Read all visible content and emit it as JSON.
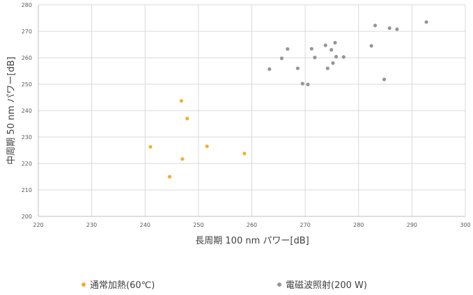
{
  "chart_data": {
    "type": "scatter",
    "xlabel": "長周期 100 nm パワー[dB]",
    "ylabel": "中周期 50 nm パワー[dB]",
    "xlim": [
      220,
      300
    ],
    "ylim": [
      200,
      280
    ],
    "xticks": [
      "220",
      "230",
      "240",
      "250",
      "260",
      "270",
      "280",
      "290",
      "300"
    ],
    "yticks": [
      "200",
      "210",
      "220",
      "230",
      "240",
      "250",
      "260",
      "270",
      "280"
    ],
    "grid": true,
    "legend_position": "bottom",
    "series": [
      {
        "name": "通常加熱(60℃)",
        "color": "#F0B030",
        "points": [
          [
            241.0,
            226.3
          ],
          [
            244.6,
            215.0
          ],
          [
            246.8,
            243.7
          ],
          [
            247.0,
            221.7
          ],
          [
            247.9,
            237.0
          ],
          [
            251.6,
            226.5
          ],
          [
            258.6,
            223.8
          ]
        ]
      },
      {
        "name": "電磁波照射(200 W)",
        "color": "#969696",
        "points": [
          [
            263.3,
            255.7
          ],
          [
            265.6,
            259.8
          ],
          [
            266.7,
            263.3
          ],
          [
            268.6,
            256.0
          ],
          [
            269.5,
            250.2
          ],
          [
            270.5,
            249.9
          ],
          [
            271.2,
            263.4
          ],
          [
            271.8,
            260.1
          ],
          [
            273.8,
            264.7
          ],
          [
            274.2,
            256.0
          ],
          [
            274.9,
            263.0
          ],
          [
            275.2,
            258.0
          ],
          [
            275.6,
            265.7
          ],
          [
            275.8,
            260.4
          ],
          [
            277.2,
            260.3
          ],
          [
            282.4,
            264.5
          ],
          [
            283.1,
            272.2
          ],
          [
            284.8,
            251.8
          ],
          [
            285.8,
            271.2
          ],
          [
            287.2,
            270.8
          ],
          [
            292.7,
            273.5
          ]
        ]
      }
    ]
  }
}
